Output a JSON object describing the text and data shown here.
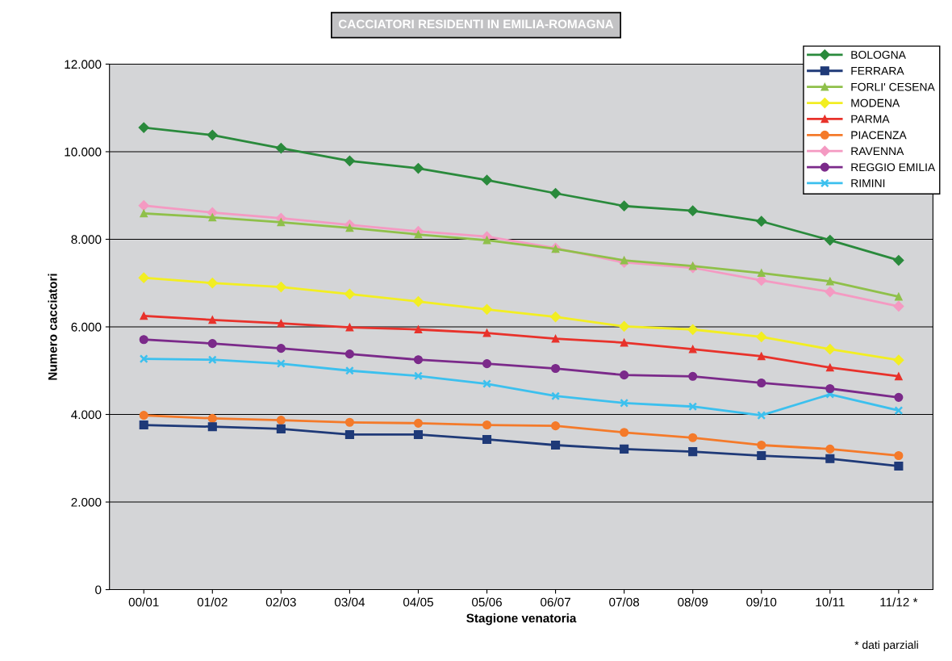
{
  "chart_data": {
    "type": "line",
    "title": "CACCIATORI RESIDENTI IN EMILIA-ROMAGNA",
    "xlabel": "Stagione venatoria",
    "ylabel": "Numero cacciatori",
    "categories": [
      "00/01",
      "01/02",
      "02/03",
      "03/04",
      "04/05",
      "05/06",
      "06/07",
      "07/08",
      "08/09",
      "09/10",
      "10/11",
      "11/12 *"
    ],
    "series": [
      {
        "name": "BOLOGNA",
        "color": "#2a8a3c",
        "marker": "diamond",
        "values": [
          10550,
          10380,
          10080,
          9790,
          9620,
          9350,
          9050,
          8760,
          8650,
          8410,
          7980,
          7520
        ]
      },
      {
        "name": "FERRARA",
        "color": "#1f3a78",
        "marker": "square",
        "values": [
          3760,
          3720,
          3670,
          3540,
          3540,
          3430,
          3300,
          3210,
          3150,
          3060,
          2990,
          2820
        ]
      },
      {
        "name": "FORLI' CESENA",
        "color": "#8fc04a",
        "marker": "triangle",
        "values": [
          8590,
          8500,
          8390,
          8260,
          8110,
          7980,
          7780,
          7520,
          7390,
          7230,
          7040,
          6690
        ]
      },
      {
        "name": "MODENA",
        "color": "#f2ee22",
        "marker": "diamond",
        "values": [
          7120,
          7000,
          6910,
          6750,
          6580,
          6400,
          6230,
          6010,
          5940,
          5770,
          5490,
          5240
        ]
      },
      {
        "name": "PARMA",
        "color": "#e8322b",
        "marker": "triangle",
        "values": [
          6250,
          6160,
          6080,
          5990,
          5940,
          5860,
          5730,
          5640,
          5490,
          5330,
          5070,
          4870
        ]
      },
      {
        "name": "PIACENZA",
        "color": "#f47a2a",
        "marker": "circle",
        "values": [
          3980,
          3910,
          3870,
          3820,
          3800,
          3760,
          3740,
          3590,
          3470,
          3300,
          3210,
          3060
        ]
      },
      {
        "name": "RAVENNA",
        "color": "#f49ac2",
        "marker": "diamond",
        "values": [
          8770,
          8610,
          8480,
          8330,
          8180,
          8060,
          7800,
          7470,
          7350,
          7060,
          6800,
          6470
        ]
      },
      {
        "name": "REGGIO EMILIA",
        "color": "#7b2a8a",
        "marker": "circle",
        "values": [
          5710,
          5620,
          5510,
          5380,
          5250,
          5160,
          5050,
          4900,
          4870,
          4720,
          4590,
          4390
        ]
      },
      {
        "name": "RIMINI",
        "color": "#3cc0ee",
        "marker": "cross",
        "values": [
          5270,
          5250,
          5160,
          5000,
          4880,
          4700,
          4420,
          4260,
          4180,
          3980,
          4460,
          4090
        ]
      }
    ],
    "ylim": [
      0,
      12000
    ],
    "yticks": [
      0,
      {
        "value": 2000,
        "label": "2.000"
      },
      {
        "value": 4000,
        "label": "4.000"
      },
      {
        "value": 6000,
        "label": "6.000"
      },
      {
        "value": 8000,
        "label": "8.000"
      },
      {
        "value": 10000,
        "label": "10.000"
      },
      {
        "value": 12000,
        "label": "12.000"
      }
    ],
    "grid": "y",
    "legend": "top right",
    "line_style": "solid",
    "annotations": [
      "* dati parziali"
    ]
  }
}
